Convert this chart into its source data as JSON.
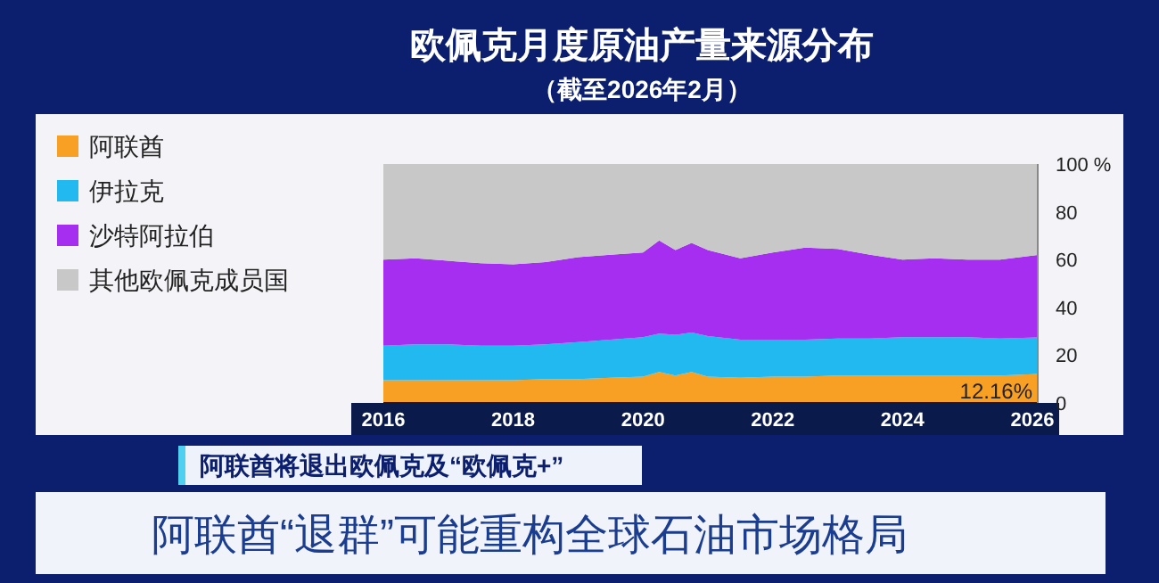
{
  "chart_data": {
    "type": "area",
    "stacked": true,
    "title": "欧佩克月度原油产量来源分布",
    "subtitle": "（截至2026年2月）",
    "x": [
      "2016-01",
      "2016-07",
      "2017-01",
      "2017-07",
      "2018-01",
      "2018-07",
      "2019-01",
      "2019-07",
      "2020-01",
      "2020-04",
      "2020-07",
      "2020-10",
      "2021-01",
      "2021-07",
      "2022-01",
      "2022-07",
      "2023-01",
      "2023-07",
      "2024-01",
      "2024-07",
      "2025-01",
      "2025-07",
      "2026-02"
    ],
    "series": [
      {
        "name": "阿联酋",
        "color": "#f7a024",
        "values": [
          9.5,
          9.5,
          9.5,
          9.5,
          9.5,
          10,
          10,
          10.5,
          11,
          13,
          11.5,
          13,
          11,
          10.5,
          11,
          11,
          11.5,
          11.5,
          11.5,
          11.5,
          11.5,
          11.5,
          12.16
        ]
      },
      {
        "name": "伊拉克",
        "color": "#22b8f0",
        "values": [
          14.5,
          15,
          15,
          14.5,
          14.5,
          14.5,
          15.5,
          16,
          16.5,
          16,
          17,
          16.5,
          17,
          16,
          15.5,
          15.5,
          15.5,
          15.5,
          16,
          16,
          16,
          15.5,
          15.3
        ]
      },
      {
        "name": "沙特阿拉伯",
        "color": "#a62ef0",
        "values": [
          36,
          36,
          35,
          34.5,
          34,
          34.5,
          35.5,
          35.5,
          35.5,
          39,
          35.5,
          37.5,
          36,
          34,
          36.5,
          38.5,
          37.5,
          35,
          32.5,
          33,
          32.5,
          33,
          34.5
        ]
      },
      {
        "name": "其他欧佩克成员国",
        "color": "#c8c8c8",
        "values": [
          40,
          39.5,
          40.5,
          41.5,
          42,
          41,
          39,
          38,
          37,
          32,
          36,
          33,
          36,
          39.5,
          37,
          35,
          35.5,
          38,
          40,
          39.5,
          40,
          40,
          38
        ]
      }
    ],
    "xlim": [
      "2016-01",
      "2026-02"
    ],
    "xticks": [
      "2016",
      "2018",
      "2020",
      "2022",
      "2024",
      "2026"
    ],
    "ylim": [
      0,
      100
    ],
    "yticks": [
      0,
      20,
      40,
      60,
      80,
      {
        "value": 100,
        "label": "100 %"
      }
    ],
    "legend": "left",
    "annotations": [
      {
        "text": "12.16%",
        "x": "2026-02",
        "y": 12.16
      },
      "阿联酋将退出欧佩克及“欧佩克+”",
      "阿联酋“退群”可能重构全球石油市场格局"
    ]
  }
}
